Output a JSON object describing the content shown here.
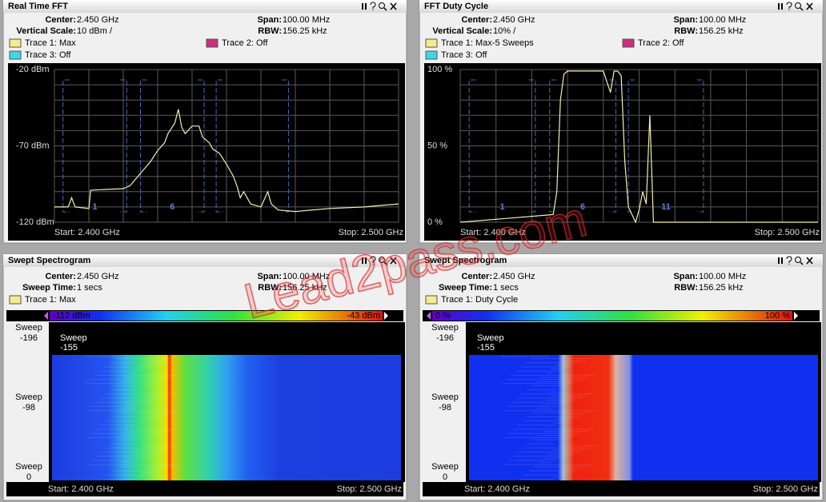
{
  "watermark": "Lead2pass.com",
  "panels": [
    {
      "title": "Real Time FFT",
      "fields": [
        [
          {
            "label": "Center:",
            "value": "2.450 GHz"
          },
          {
            "label": "Span:",
            "value": "100.00 MHz"
          }
        ],
        [
          {
            "label": "Vertical Scale:",
            "value": "10 dBm /"
          },
          {
            "label": "RBW:",
            "value": "156.25 kHz"
          }
        ]
      ],
      "traces": [
        {
          "name": "Trace 1: Max",
          "color": "#f4ec8c"
        },
        {
          "name": "Trace 2: Off",
          "color": "#c8307a"
        },
        {
          "name": "Trace 3: Off",
          "color": "#40d8e0"
        }
      ],
      "plot": {
        "type": "line",
        "color": "#f4f0b0",
        "x": [
          2400,
          2404,
          2405,
          2406,
          2410,
          2410.5,
          2420,
          2422,
          2425,
          2428,
          2430,
          2432,
          2433,
          2435,
          2436,
          2437,
          2438,
          2440,
          2442,
          2443,
          2445,
          2446,
          2448,
          2450,
          2452,
          2453,
          2454,
          2455,
          2457,
          2460,
          2462,
          2463,
          2465,
          2470,
          2480,
          2490,
          2500
        ],
        "values": [
          -110,
          -110,
          -104,
          -110,
          -111,
          -99,
          -98,
          -96,
          -88,
          -80,
          -73,
          -68,
          -62,
          -55,
          -46,
          -58,
          -62,
          -57,
          -57,
          -64,
          -68,
          -72,
          -75,
          -82,
          -90,
          -96,
          -104,
          -100,
          -108,
          -110,
          -100,
          -108,
          -112,
          -113,
          -111,
          -110,
          -108
        ],
        "xlim": [
          2400,
          2500
        ],
        "ylim": [
          -120,
          -20
        ],
        "yticks": [
          {
            "value": -20,
            "label": "-20 dBm"
          },
          {
            "value": -70,
            "label": "-70 dBm"
          },
          {
            "value": -120,
            "label": "-120 dBm"
          }
        ],
        "channels": [
          "1",
          "6",
          null
        ],
        "start": "Start: 2.400 GHz",
        "stop": "Stop: 2.500 GHz"
      }
    },
    {
      "title": "FFT Duty Cycle",
      "fields": [
        [
          {
            "label": "Center:",
            "value": "2.450 GHz"
          },
          {
            "label": "Span:",
            "value": "100.00 MHz"
          }
        ],
        [
          {
            "label": "Vertical Scale:",
            "value": "10% /"
          },
          {
            "label": "RBW:",
            "value": "156.25 kHz"
          }
        ]
      ],
      "traces": [
        {
          "name": "Trace 1: Max-5 Sweeps",
          "color": "#f4ec8c"
        },
        {
          "name": "Trace 2: Off",
          "color": "#c8307a"
        },
        {
          "name": "Trace 3: Off",
          "color": "#40d8e0"
        }
      ],
      "plot": {
        "type": "line",
        "color": "#f4f0b0",
        "x": [
          2400,
          2426,
          2427,
          2428,
          2429,
          2430,
          2440,
          2442,
          2443,
          2444,
          2445,
          2446,
          2447,
          2448,
          2449,
          2450,
          2451,
          2452,
          2453,
          2454,
          2500
        ],
        "values": [
          0,
          5,
          20,
          80,
          97,
          99,
          99,
          85,
          99,
          99,
          96,
          40,
          10,
          5,
          0,
          8,
          20,
          12,
          70,
          0,
          0
        ],
        "xlim": [
          2400,
          2500
        ],
        "ylim": [
          0,
          100
        ],
        "yticks": [
          {
            "value": 100,
            "label": "100 %"
          },
          {
            "value": 50,
            "label": "50 %"
          },
          {
            "value": 0,
            "label": "0 %"
          }
        ],
        "channels": [
          "1",
          "6",
          "11"
        ],
        "start": "Start: 2.400 GHz",
        "stop": "Stop: 2.500 GHz"
      }
    },
    {
      "title": "Swept Spectrogram",
      "fields": [
        [
          {
            "label": "Center:",
            "value": "2.450 GHz"
          },
          {
            "label": "Span:",
            "value": "100.00 MHz"
          }
        ],
        [
          {
            "label": "Sweep Time:",
            "value": "1 secs"
          },
          {
            "label": "RBW:",
            "value": "156.25 kHz"
          }
        ]
      ],
      "traces": [
        {
          "name": "Trace 1: Max",
          "color": "#f4ec8c"
        }
      ],
      "spectrogram": {
        "scale_min": "-112 dBm",
        "scale_max": "-43 dBm",
        "sweeps": [
          [
            "Sweep",
            "-196"
          ],
          [
            "Sweep",
            "-98"
          ],
          [
            "Sweep",
            "0"
          ]
        ],
        "cursor": [
          "Sweep",
          "-155"
        ],
        "start": "Start: 2.400 GHz",
        "stop": "Stop: 2.500 GHz"
      }
    },
    {
      "title": "Swept Spectrogram",
      "fields": [
        [
          {
            "label": "Center:",
            "value": "2.450 GHz"
          },
          {
            "label": "Span:",
            "value": "100.00 MHz"
          }
        ],
        [
          {
            "label": "Sweep Time:",
            "value": "1 secs"
          },
          {
            "label": "RBW:",
            "value": "156.25 kHz"
          }
        ]
      ],
      "traces": [
        {
          "name": "Trace 1: Duty Cycle",
          "color": "#f4ec8c"
        }
      ],
      "spectrogram": {
        "scale_min": "0 %",
        "scale_max": "100 %",
        "sweeps": [
          [
            "Sweep",
            "-196"
          ],
          [
            "Sweep",
            "-98"
          ],
          [
            "Sweep",
            "0"
          ]
        ],
        "cursor": [
          "Sweep",
          "-155"
        ],
        "start": "Start: 2.400 GHz",
        "stop": "Stop: 2.500 GHz"
      }
    }
  ]
}
